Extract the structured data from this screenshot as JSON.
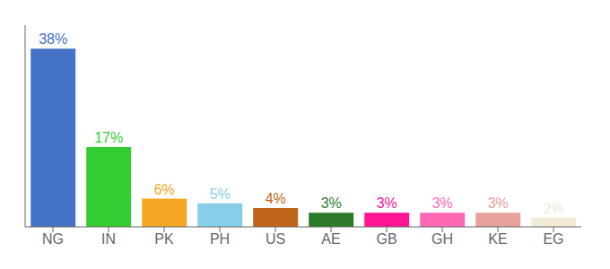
{
  "chart_data": {
    "type": "bar",
    "categories": [
      "NG",
      "IN",
      "PK",
      "PH",
      "US",
      "AE",
      "GB",
      "GH",
      "KE",
      "EG"
    ],
    "values": [
      38,
      17,
      6,
      5,
      4,
      3,
      3,
      3,
      3,
      2
    ],
    "value_labels": [
      "38%",
      "17%",
      "6%",
      "5%",
      "4%",
      "3%",
      "3%",
      "3%",
      "3%",
      "2%"
    ],
    "colors": [
      "#4472c4",
      "#33cc33",
      "#f5a623",
      "#87ceeb",
      "#c0651a",
      "#2d7a2d",
      "#ff1493",
      "#ff69b4",
      "#e8a09a",
      "#f0ead6"
    ],
    "data_labels": true,
    "ylim": [
      0,
      43
    ],
    "tick_labels": "x",
    "grid": false
  }
}
